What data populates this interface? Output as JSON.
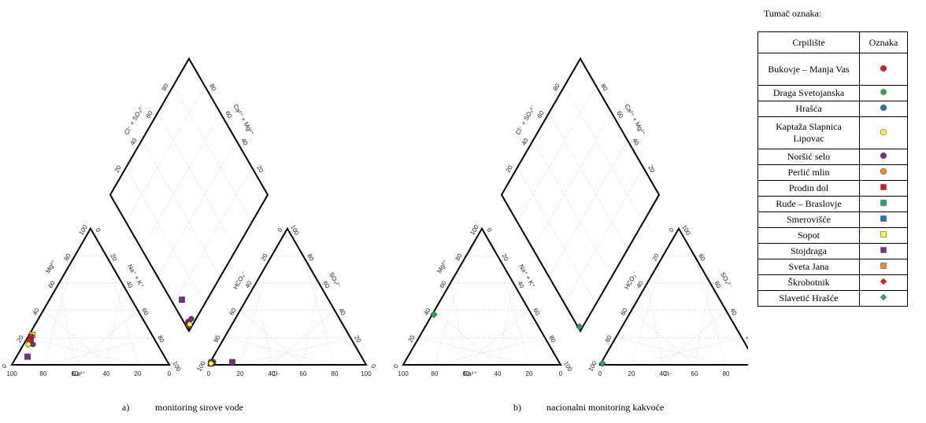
{
  "legend": {
    "title": "Tumač oznaka:",
    "col_site": "Crpilište",
    "col_symbol": "Oznaka",
    "items": [
      {
        "name": "Bukovje – Manja Vas",
        "shape": "circle",
        "color": "#e31a1c"
      },
      {
        "name": "Draga Svetojanska",
        "shape": "hexagon",
        "color": "#2ca25f"
      },
      {
        "name": "Hrašća",
        "shape": "circle",
        "color": "#1f78b4"
      },
      {
        "name": "Kaptaža Slapnica Lipovac",
        "shape": "circle",
        "color": "#ffff33"
      },
      {
        "name": "Noršić selo",
        "shape": "circle",
        "color": "#7b2d8e"
      },
      {
        "name": "Perlić mlin",
        "shape": "circle",
        "color": "#f28c28"
      },
      {
        "name": "Prodin dol",
        "shape": "square",
        "color": "#e31a1c"
      },
      {
        "name": "Rude – Braslovje",
        "shape": "square",
        "color": "#2ca25f"
      },
      {
        "name": "Smerovišće",
        "shape": "square",
        "color": "#1f78b4"
      },
      {
        "name": "Sopot",
        "shape": "square",
        "color": "#ffff33"
      },
      {
        "name": "Stojdraga",
        "shape": "square",
        "color": "#7b2d8e"
      },
      {
        "name": "Sveta Jana",
        "shape": "square",
        "color": "#f28c28"
      },
      {
        "name": "Škrobotnik",
        "shape": "diamond",
        "color": "#e31a1c"
      },
      {
        "name": "Slavetić Hrašće",
        "shape": "diamond",
        "color": "#2ca25f"
      }
    ]
  },
  "chart_data": [
    {
      "type": "scatter",
      "subtype": "piper",
      "caption_letter": "a)",
      "caption": "monitoring sirove vode",
      "tick_labels": [
        "20",
        "40",
        "60",
        "80",
        "100"
      ],
      "axis_labels": {
        "cation_bottom": "Ca²⁺",
        "cation_left": "Mg²⁺",
        "cation_right": "Na⁺ + K⁺",
        "anion_bottom": "Cl-",
        "anion_left": "HCO₃⁻",
        "anion_right": "SO₄²⁻",
        "diamond_left": "Cl⁻ + SO₄²⁻",
        "diamond_right": "Ca²⁺ + Mg²⁺"
      },
      "points": [
        {
          "site": "Sopot",
          "ca": 76,
          "mg": 22,
          "cl": 1,
          "so4": 2
        },
        {
          "site": "Perlić mlin",
          "ca": 77,
          "mg": 21,
          "cl": 1,
          "so4": 2
        },
        {
          "site": "Prodin dol",
          "ca": 78,
          "mg": 20,
          "cl": 1,
          "so4": 1
        },
        {
          "site": "Noršić selo",
          "ca": 79,
          "mg": 19,
          "cl": 1,
          "so4": 1
        },
        {
          "site": "Bukovje – Manja Vas",
          "ca": 79,
          "mg": 18,
          "cl": 2,
          "so4": 2
        },
        {
          "site": "Noršić selo",
          "ca": 80,
          "mg": 17,
          "cl": 1,
          "so4": 2
        },
        {
          "site": "Škrobotnik",
          "ca": 80,
          "mg": 18,
          "cl": 1,
          "so4": 1
        },
        {
          "site": "Noršić selo",
          "ca": 79,
          "mg": 15,
          "cl": 2,
          "so4": 1
        },
        {
          "site": "Kaptaža Slapnica Lipovac",
          "ca": 82,
          "mg": 15,
          "cl": 1,
          "so4": 1
        },
        {
          "site": "Stojdraga",
          "ca": 87,
          "mg": 6,
          "cl": 14,
          "so4": 2
        }
      ]
    },
    {
      "type": "scatter",
      "subtype": "piper",
      "caption_letter": "b)",
      "caption": "nacionalni monitoring kakvoće",
      "tick_labels": [
        "20",
        "40",
        "60",
        "80",
        "100"
      ],
      "axis_labels": {
        "cation_bottom": "Ca²⁺",
        "cation_left": "Mg²⁺",
        "cation_right": "Na⁺ + K⁺",
        "anion_bottom": "Cl-",
        "anion_left": "HCO₃⁻",
        "anion_right": "SO₄²⁻",
        "diamond_left": "Cl⁻ + SO₄²⁻",
        "diamond_right": "Ca²⁺ + Mg²⁺"
      },
      "points": [
        {
          "site": "Slavetić Hrašće",
          "ca": 62,
          "mg": 37,
          "cl": 1,
          "so4": 1
        }
      ]
    }
  ]
}
